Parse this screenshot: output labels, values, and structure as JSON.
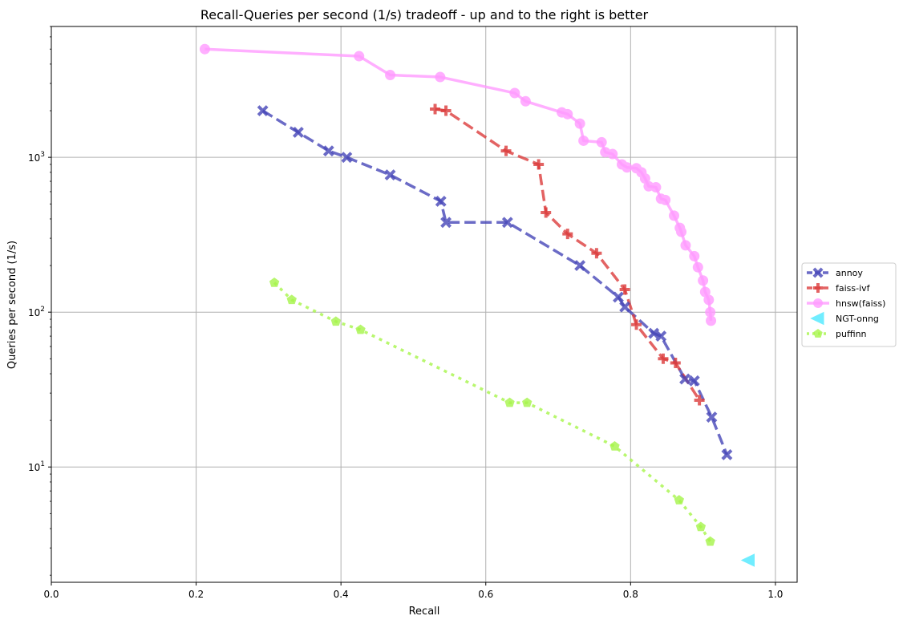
{
  "chart_data": {
    "type": "line",
    "title": "Recall-Queries per second (1/s) tradeoff - up and to the right is better",
    "xlabel": "Recall",
    "ylabel": "Queries per second (1/s)",
    "xlim": [
      0.0,
      1.03
    ],
    "ylim": [
      1.8,
      7000
    ],
    "yscale": "log",
    "grid": true,
    "legend_position": "right",
    "x_ticks": [
      {
        "value": 0.0,
        "label": "0.0"
      },
      {
        "value": 0.2,
        "label": "0.2"
      },
      {
        "value": 0.4,
        "label": "0.4"
      },
      {
        "value": 0.6,
        "label": "0.6"
      },
      {
        "value": 0.8,
        "label": "0.8"
      },
      {
        "value": 1.0,
        "label": "1.0"
      }
    ],
    "y_ticks": [
      {
        "value": 10,
        "base": "10",
        "exp": "1"
      },
      {
        "value": 100,
        "base": "10",
        "exp": "2"
      },
      {
        "value": 1000,
        "base": "10",
        "exp": "3"
      }
    ],
    "series": [
      {
        "name": "annoy",
        "color": "#4646b8",
        "linestyle": "dashed",
        "marker": "x",
        "x": [
          0.292,
          0.341,
          0.383,
          0.408,
          0.468,
          0.538,
          0.545,
          0.63,
          0.73,
          0.783,
          0.792,
          0.832,
          0.842,
          0.875,
          0.888,
          0.912,
          0.933
        ],
        "y": [
          2000,
          1450,
          1100,
          1000,
          770,
          520,
          380,
          380,
          200,
          125,
          108,
          73,
          70,
          37,
          36,
          21,
          12
        ]
      },
      {
        "name": "faiss-ivf",
        "color": "#dc3c3c",
        "linestyle": "dashed",
        "marker": "plus",
        "x": [
          0.53,
          0.545,
          0.628,
          0.673,
          0.683,
          0.713,
          0.753,
          0.792,
          0.808,
          0.845,
          0.862,
          0.895
        ],
        "y": [
          2050,
          2000,
          1100,
          900,
          440,
          320,
          240,
          140,
          83,
          50,
          47,
          27
        ]
      },
      {
        "name": "hnsw(faiss)",
        "color": "#ff9bff",
        "linestyle": "solid",
        "marker": "circle",
        "x": [
          0.212,
          0.425,
          0.468,
          0.537,
          0.64,
          0.655,
          0.705,
          0.713,
          0.73,
          0.735,
          0.76,
          0.765,
          0.775,
          0.788,
          0.795,
          0.808,
          0.815,
          0.82,
          0.825,
          0.835,
          0.842,
          0.848,
          0.86,
          0.868,
          0.87,
          0.876,
          0.888,
          0.893,
          0.9,
          0.903,
          0.908,
          0.91,
          0.911
        ],
        "y": [
          5000,
          4500,
          3400,
          3300,
          2600,
          2300,
          1950,
          1900,
          1650,
          1280,
          1250,
          1080,
          1050,
          900,
          860,
          850,
          800,
          730,
          650,
          640,
          540,
          530,
          420,
          350,
          330,
          270,
          230,
          195,
          160,
          135,
          120,
          100,
          88
        ]
      },
      {
        "name": "NGT-onng",
        "color": "#4ee8ff",
        "linestyle": "none",
        "marker": "triangle-left",
        "x": [
          0.963
        ],
        "y": [
          2.5
        ]
      },
      {
        "name": "puffinn",
        "color": "#a6f54a",
        "linestyle": "dotted",
        "marker": "pentagon",
        "x": [
          0.308,
          0.332,
          0.393,
          0.427,
          0.633,
          0.657,
          0.778,
          0.867,
          0.897,
          0.91
        ],
        "y": [
          155,
          120,
          87,
          77,
          26,
          26,
          13.6,
          6.1,
          4.1,
          3.3
        ]
      }
    ]
  }
}
